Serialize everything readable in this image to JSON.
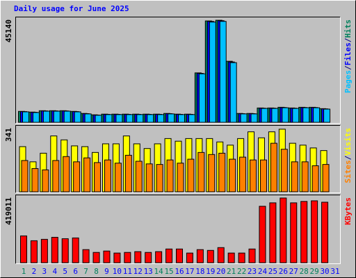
{
  "chart_data": [
    {
      "type": "bar",
      "title": "Daily usage for June 2025",
      "ylim": [
        0,
        45140
      ],
      "yticks": [
        45140
      ],
      "legend_separator": "/",
      "series": [
        {
          "name": "Hits",
          "color": "#00805c",
          "values": [
            4800,
            4500,
            5100,
            5100,
            5100,
            4800,
            3900,
            3300,
            3600,
            3600,
            3600,
            3600,
            3600,
            3600,
            3900,
            3600,
            3600,
            21700,
            44500,
            44800,
            26800,
            3900,
            3900,
            6300,
            6300,
            6600,
            6300,
            6600,
            6600,
            6000,
            0
          ]
        },
        {
          "name": "Files",
          "color": "#0000ff",
          "values": [
            4700,
            4400,
            5000,
            5000,
            5000,
            4700,
            3800,
            3200,
            3500,
            3500,
            3500,
            3500,
            3500,
            3500,
            3800,
            3500,
            3500,
            21500,
            44300,
            44600,
            26500,
            3800,
            3800,
            6200,
            6200,
            6500,
            6200,
            6500,
            6500,
            5900,
            0
          ]
        },
        {
          "name": "Pages",
          "color": "#00c0ff",
          "values": [
            4600,
            4300,
            4900,
            4900,
            4900,
            4600,
            3700,
            3100,
            3400,
            3400,
            3400,
            3400,
            3400,
            3400,
            3700,
            3400,
            3400,
            21300,
            44000,
            44300,
            26200,
            3700,
            3700,
            6100,
            6100,
            6400,
            6100,
            6400,
            6400,
            5800,
            0
          ]
        }
      ]
    },
    {
      "type": "bar",
      "ylim": [
        0,
        341
      ],
      "yticks": [
        341
      ],
      "legend_separator": "/",
      "series": [
        {
          "name": "Visits",
          "color": "#ffff00",
          "values": [
            241,
            160,
            206,
            298,
            277,
            245,
            241,
            210,
            256,
            256,
            298,
            256,
            231,
            256,
            284,
            270,
            284,
            284,
            284,
            266,
            249,
            284,
            320,
            288,
            320,
            334,
            259,
            249,
            234,
            220,
            0
          ]
        },
        {
          "name": "Sites",
          "color": "#ff8000",
          "values": [
            167,
            124,
            117,
            167,
            188,
            160,
            181,
            156,
            170,
            153,
            195,
            163,
            149,
            146,
            170,
            153,
            174,
            210,
            199,
            206,
            174,
            185,
            170,
            170,
            259,
            227,
            160,
            160,
            139,
            146,
            0
          ]
        }
      ]
    },
    {
      "type": "bar",
      "ylim": [
        0,
        419011
      ],
      "yticks": [
        419011
      ],
      "categories": [
        "1",
        "2",
        "3",
        "4",
        "5",
        "6",
        "7",
        "8",
        "9",
        "10",
        "11",
        "12",
        "13",
        "14",
        "15",
        "16",
        "17",
        "18",
        "19",
        "20",
        "21",
        "22",
        "23",
        "24",
        "25",
        "26",
        "27",
        "28",
        "29",
        "30",
        "31"
      ],
      "category_colors": [
        "#00805c",
        "#0000ff",
        "#0000ff",
        "#0000ff",
        "#0000ff",
        "#0000ff",
        "#00805c",
        "#00805c",
        "#0000ff",
        "#0000ff",
        "#0000ff",
        "#0000ff",
        "#0000ff",
        "#00805c",
        "#00805c",
        "#0000ff",
        "#0000ff",
        "#0000ff",
        "#0000ff",
        "#0000ff",
        "#00805c",
        "#00805c",
        "#0000ff",
        "#0000ff",
        "#0000ff",
        "#0000ff",
        "#0000ff",
        "#00805c",
        "#00805c",
        "#0000ff",
        "#0000ff"
      ],
      "series": [
        {
          "name": "KBytes",
          "color": "#ff0000",
          "values": [
            172000,
            141000,
            150000,
            163000,
            154000,
            159000,
            84000,
            66000,
            75000,
            62000,
            66000,
            71000,
            66000,
            71000,
            88000,
            88000,
            62000,
            84000,
            79000,
            97000,
            62000,
            62000,
            88000,
            362000,
            384000,
            415000,
            384000,
            393000,
            397000,
            388000,
            0
          ]
        }
      ]
    }
  ]
}
